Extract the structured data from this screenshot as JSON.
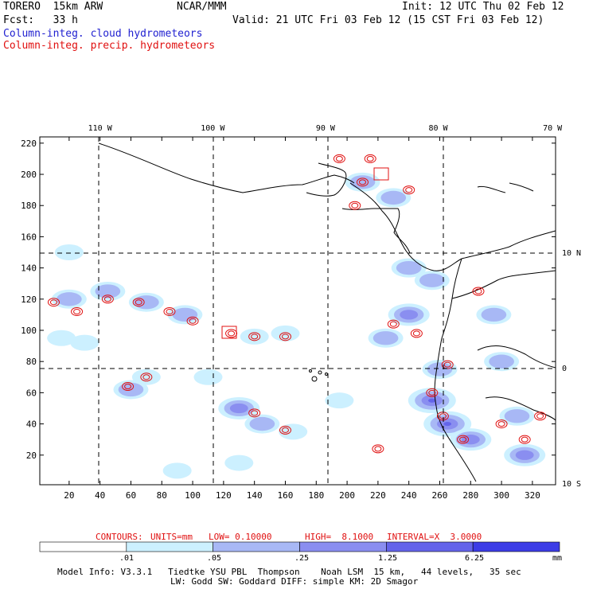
{
  "header": {
    "model": "TORERO  15km ARW",
    "org": "NCAR/MMM",
    "init": "Init: 12 UTC Thu 02 Feb 12",
    "fcst": "Fcst:   33 h",
    "valid": "Valid: 21 UTC Fri 03 Feb 12 (15 CST Fri 03 Feb 12)",
    "legend_blue": "Column-integ. cloud hydrometeors",
    "legend_red": "Column-integ. precip. hydrometeors"
  },
  "colors": {
    "cloud_blue": "#1f1fd0",
    "precip_red": "#e01010",
    "fill_levels": [
      "#ffffff",
      "#ccf0ff",
      "#a8b8f5",
      "#8a8ef0",
      "#6464ea",
      "#3c3ce6"
    ]
  },
  "chart_data": {
    "type": "heatmap",
    "title": "Column-integ. cloud hydrometeors / Column-integ. precip. hydrometeors",
    "x_grid_ticks": [
      20,
      40,
      60,
      80,
      100,
      120,
      140,
      160,
      180,
      200,
      220,
      240,
      260,
      280,
      300,
      320
    ],
    "x_grid_ticks_labels": [
      "20",
      "40",
      "60",
      "80",
      "100",
      "120",
      "140",
      "160",
      "180",
      "200",
      "220",
      "240",
      "260",
      "280",
      "300",
      "320"
    ],
    "y_grid_ticks": [
      20,
      40,
      60,
      80,
      100,
      120,
      140,
      160,
      180,
      200,
      220
    ],
    "y_grid_ticks_labels": [
      "20",
      "40",
      "60",
      "80",
      "100",
      "120",
      "140",
      "160",
      "180",
      "200",
      "220"
    ],
    "xlim": [
      1,
      335
    ],
    "ylim": [
      1,
      224
    ],
    "longitudes": [
      {
        "label": "110 W",
        "grid_x": 40
      },
      {
        "label": "100 W",
        "grid_x": 113
      },
      {
        "label": "90 W",
        "grid_x": 186
      },
      {
        "label": "80 W",
        "grid_x": 259
      },
      {
        "label": "70 W",
        "grid_x": 333
      }
    ],
    "latitudes": [
      {
        "label": "10 N",
        "grid_y": 150
      },
      {
        "label": "0",
        "grid_y": 76
      },
      {
        "label": "10 S",
        "grid_y": 2
      }
    ],
    "cloud_regions": [
      {
        "x": 20,
        "y": 120,
        "level": 2
      },
      {
        "x": 45,
        "y": 125,
        "level": 2
      },
      {
        "x": 70,
        "y": 118,
        "level": 2
      },
      {
        "x": 95,
        "y": 110,
        "level": 2
      },
      {
        "x": 140,
        "y": 96,
        "level": 1
      },
      {
        "x": 160,
        "y": 98,
        "level": 1
      },
      {
        "x": 30,
        "y": 92,
        "level": 1
      },
      {
        "x": 15,
        "y": 95,
        "level": 1
      },
      {
        "x": 70,
        "y": 70,
        "level": 1
      },
      {
        "x": 110,
        "y": 70,
        "level": 1
      },
      {
        "x": 130,
        "y": 50,
        "level": 3
      },
      {
        "x": 145,
        "y": 40,
        "level": 2
      },
      {
        "x": 165,
        "y": 35,
        "level": 1
      },
      {
        "x": 60,
        "y": 62,
        "level": 2
      },
      {
        "x": 240,
        "y": 110,
        "level": 3
      },
      {
        "x": 225,
        "y": 95,
        "level": 2
      },
      {
        "x": 260,
        "y": 75,
        "level": 2
      },
      {
        "x": 255,
        "y": 55,
        "level": 4
      },
      {
        "x": 265,
        "y": 40,
        "level": 4
      },
      {
        "x": 280,
        "y": 30,
        "level": 3
      },
      {
        "x": 310,
        "y": 45,
        "level": 2
      },
      {
        "x": 315,
        "y": 20,
        "level": 3
      },
      {
        "x": 230,
        "y": 185,
        "level": 2
      },
      {
        "x": 210,
        "y": 195,
        "level": 2
      },
      {
        "x": 295,
        "y": 110,
        "level": 2
      },
      {
        "x": 300,
        "y": 80,
        "level": 2
      },
      {
        "x": 195,
        "y": 55,
        "level": 1
      },
      {
        "x": 90,
        "y": 10,
        "level": 1
      },
      {
        "x": 130,
        "y": 15,
        "level": 1
      },
      {
        "x": 20,
        "y": 150,
        "level": 1
      },
      {
        "x": 240,
        "y": 140,
        "level": 2
      },
      {
        "x": 255,
        "y": 132,
        "level": 2
      }
    ],
    "precip_regions": [
      {
        "x": 10,
        "y": 118
      },
      {
        "x": 25,
        "y": 112
      },
      {
        "x": 45,
        "y": 120
      },
      {
        "x": 65,
        "y": 118
      },
      {
        "x": 85,
        "y": 112
      },
      {
        "x": 100,
        "y": 106
      },
      {
        "x": 125,
        "y": 98
      },
      {
        "x": 140,
        "y": 96
      },
      {
        "x": 160,
        "y": 96
      },
      {
        "x": 58,
        "y": 64
      },
      {
        "x": 70,
        "y": 70
      },
      {
        "x": 140,
        "y": 47
      },
      {
        "x": 160,
        "y": 36
      },
      {
        "x": 230,
        "y": 104
      },
      {
        "x": 245,
        "y": 98
      },
      {
        "x": 265,
        "y": 78
      },
      {
        "x": 255,
        "y": 60
      },
      {
        "x": 262,
        "y": 45
      },
      {
        "x": 275,
        "y": 30
      },
      {
        "x": 300,
        "y": 40
      },
      {
        "x": 315,
        "y": 30
      },
      {
        "x": 325,
        "y": 45
      },
      {
        "x": 210,
        "y": 195
      },
      {
        "x": 215,
        "y": 210
      },
      {
        "x": 205,
        "y": 180
      },
      {
        "x": 240,
        "y": 190
      },
      {
        "x": 285,
        "y": 125
      },
      {
        "x": 195,
        "y": 210
      },
      {
        "x": 220,
        "y": 24
      }
    ]
  },
  "contour_info": {
    "label": "CONTOURS:",
    "units": "UNITS=mm",
    "low": "LOW= 0.10000",
    "high": "HIGH=  8.1000",
    "interval": "INTERVAL=X  3.0000"
  },
  "colorbar": {
    "labels": [
      ".01",
      ".05",
      ".25",
      "1.25",
      "6.25"
    ],
    "unit": "mm"
  },
  "footer": {
    "line1": "Model Info: V3.3.1   Tiedtke YSU PBL  Thompson    Noah LSM  15 km,   44 levels,   35 sec",
    "line2": "LW: Godd SW: Goddard DIFF: simple KM: 2D Smagor"
  }
}
